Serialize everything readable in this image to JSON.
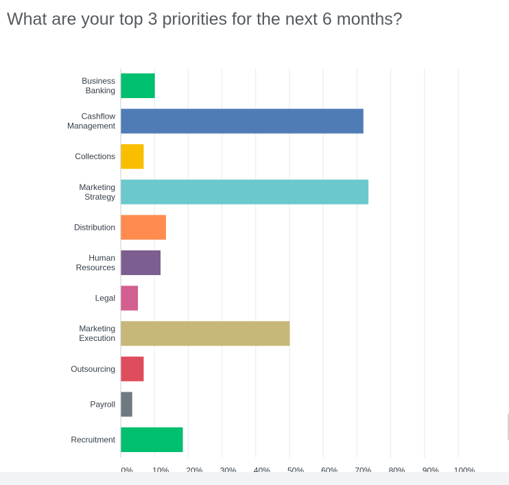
{
  "chart_data": {
    "type": "bar",
    "orientation": "horizontal",
    "title": "What are your top 3 priorities for the next 6 months?",
    "categories": [
      "Business Banking",
      "Cashflow Management",
      "Collections",
      "Marketing Strategy",
      "Distribution",
      "Human Resources",
      "Legal",
      "Marketing Execution",
      "Outsourcing",
      "Payroll",
      "Recruitment"
    ],
    "values": [
      10,
      71.8,
      6.7,
      73.3,
      13.3,
      11.7,
      5,
      50,
      6.7,
      3.3,
      18.3
    ],
    "value_unit": "%",
    "xlim": [
      0,
      100
    ],
    "x_ticks": [
      "0%",
      "10%",
      "20%",
      "30%",
      "40%",
      "50%",
      "60%",
      "70%",
      "80%",
      "90%",
      "100%"
    ],
    "grid": "vertical",
    "colors": [
      "#00bf6f",
      "#507cb6",
      "#f9be00",
      "#6bc8cd",
      "#ff8b4f",
      "#7d5e90",
      "#d25f90",
      "#c7b879",
      "#de4d5c",
      "#6e7a80",
      "#00bf6f"
    ]
  }
}
